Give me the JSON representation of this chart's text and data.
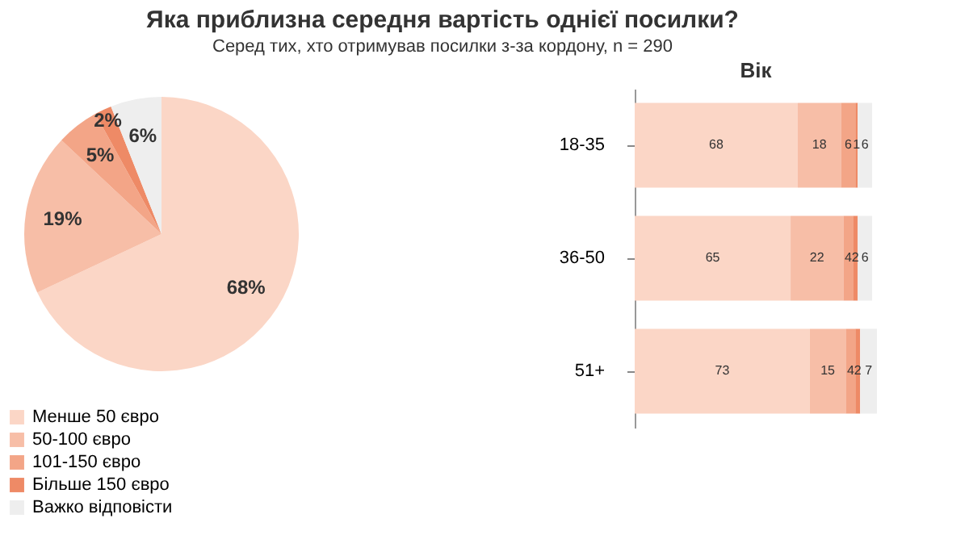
{
  "chart_data": [
    {
      "type": "pie",
      "title": "Яка приблизна середня вартість однієї посилки?",
      "subtitle": "Серед тих, хто отримував посилки з-за кордону, n = 290",
      "categories": [
        "Менше 50 євро",
        "50-100 євро",
        "101-150 євро",
        "Більше 150 євро",
        "Важко відповісти"
      ],
      "values": [
        68,
        19,
        5,
        2,
        6
      ],
      "colors": [
        "#fbd6c6",
        "#f7bea7",
        "#f3a587",
        "#ee8a66",
        "#eeeeee"
      ],
      "value_labels": [
        "68%",
        "19%",
        "5%",
        "2%",
        "6%"
      ],
      "legend": "bottom"
    },
    {
      "type": "bar",
      "orientation": "horizontal",
      "stacked": true,
      "title": "Вік",
      "categories": [
        "18-35",
        "36-50",
        "51+"
      ],
      "series": [
        {
          "color": "#fbd6c6",
          "values": [
            68,
            65,
            73
          ]
        },
        {
          "color": "#f7bea7",
          "values": [
            18,
            22,
            15
          ]
        },
        {
          "color": "#f3a587",
          "values": [
            6,
            4,
            4
          ]
        },
        {
          "color": "#ee8a66",
          "values": [
            1,
            2,
            2
          ]
        },
        {
          "color": "#eeeeee",
          "values": [
            6,
            6,
            7
          ]
        }
      ],
      "data_labels": true,
      "tick_labels": "y",
      "grid": false,
      "legend": false
    }
  ]
}
